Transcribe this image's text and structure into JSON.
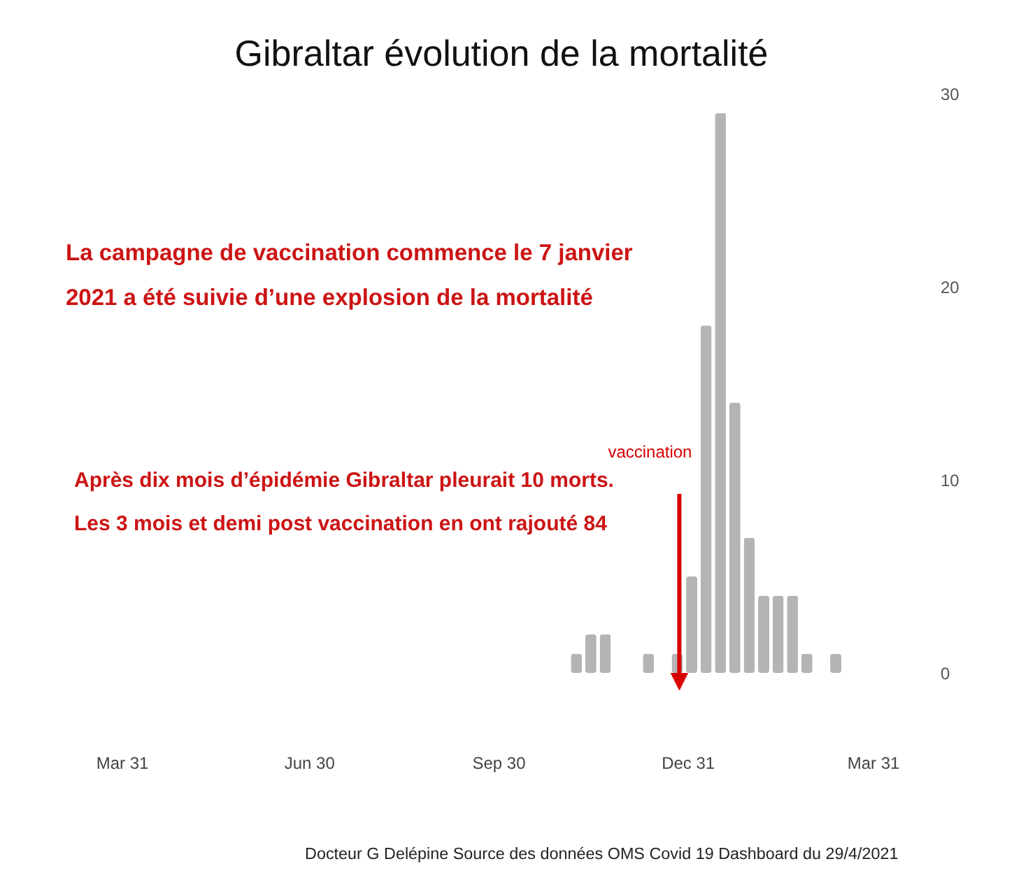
{
  "chart_data": {
    "type": "bar",
    "title": "Gibraltar évolution de la mortalité",
    "x": [
      "2020-11-07",
      "2020-11-14",
      "2020-11-21",
      "2020-12-12",
      "2020-12-26",
      "2021-01-02",
      "2021-01-09",
      "2021-01-16",
      "2021-01-23",
      "2021-01-30",
      "2021-02-06",
      "2021-02-13",
      "2021-02-20",
      "2021-02-27",
      "2021-03-13"
    ],
    "values": [
      1,
      2,
      2,
      1,
      1,
      5,
      18,
      29,
      14,
      7,
      4,
      4,
      4,
      1,
      1
    ],
    "color": "#b4b4b4",
    "xlim": [
      "2020-03-31",
      "2021-03-31"
    ],
    "xticks": [
      {
        "value": "2020-03-31",
        "label": "Mar 31"
      },
      {
        "value": "2020-06-30",
        "label": "Jun 30"
      },
      {
        "value": "2020-09-30",
        "label": "Sep 30"
      },
      {
        "value": "2020-12-31",
        "label": "Dec 31"
      },
      {
        "value": "2021-03-31",
        "label": "Mar 31"
      }
    ],
    "ylim": [
      0,
      30
    ],
    "yticks": [
      0,
      10,
      20,
      30
    ],
    "ref_lines": [
      {
        "axis": "x",
        "value": "2020-12-27",
        "label": "vaccination",
        "color": "#d90000"
      }
    ],
    "annotations": [
      "La campagne de vaccination commence le 7 janvier\n2021 a été suivie d’une explosion de la mortalité",
      "Après dix mois d’épidémie Gibraltar pleurait 10 morts.\nLes 3 mois et demi post vaccination en ont rajouté 84",
      "Docteur G Delépine Source des données OMS Covid 19 Dashboard du 29/4/2021"
    ]
  }
}
